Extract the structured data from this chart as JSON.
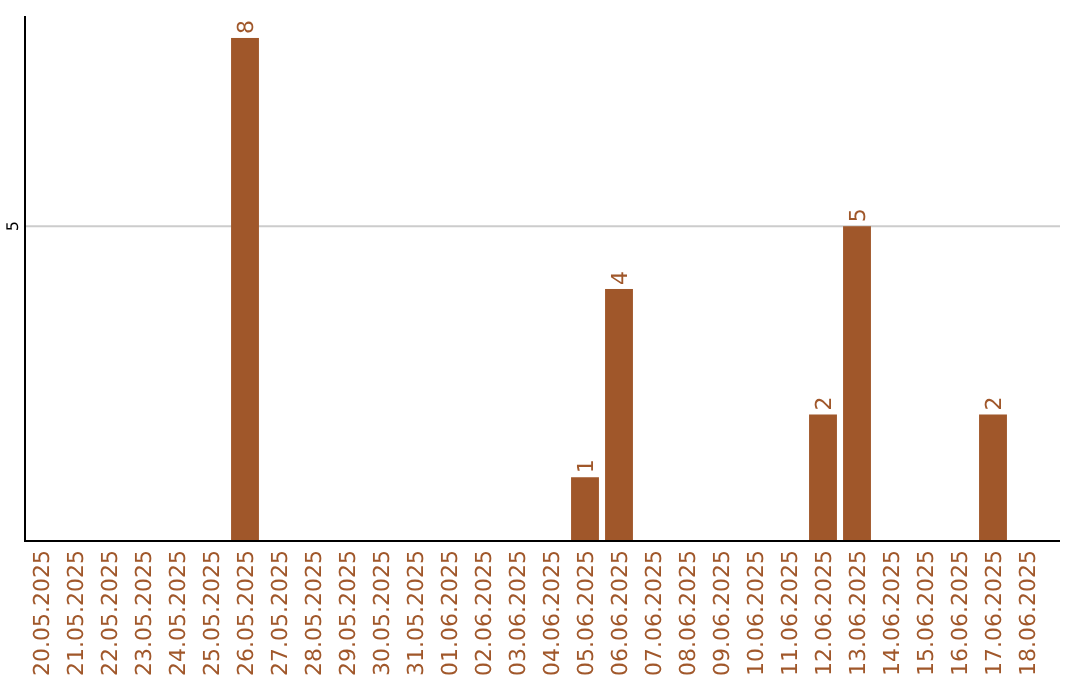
{
  "chart_data": {
    "type": "bar",
    "categories": [
      "20.05.2025",
      "21.05.2025",
      "22.05.2025",
      "23.05.2025",
      "24.05.2025",
      "25.05.2025",
      "26.05.2025",
      "27.05.2025",
      "28.05.2025",
      "29.05.2025",
      "30.05.2025",
      "31.05.2025",
      "01.06.2025",
      "02.06.2025",
      "03.06.2025",
      "04.06.2025",
      "05.06.2025",
      "06.06.2025",
      "07.06.2025",
      "08.06.2025",
      "09.06.2025",
      "10.06.2025",
      "11.06.2025",
      "12.06.2025",
      "13.06.2025",
      "14.06.2025",
      "15.06.2025",
      "16.06.2025",
      "17.06.2025",
      "18.06.2025"
    ],
    "values": [
      0,
      0,
      0,
      0,
      0,
      0,
      8,
      0,
      0,
      0,
      0,
      0,
      0,
      0,
      0,
      0,
      1,
      4,
      0,
      0,
      0,
      0,
      0,
      2,
      5,
      0,
      0,
      0,
      2,
      0
    ],
    "value_labels": [
      null,
      null,
      null,
      null,
      null,
      null,
      "8",
      null,
      null,
      null,
      null,
      null,
      null,
      null,
      null,
      null,
      "1",
      "4",
      null,
      null,
      null,
      null,
      null,
      "2",
      "5",
      null,
      null,
      null,
      "2",
      null
    ],
    "color": "#a0572a",
    "ylim": [
      0,
      8.35
    ],
    "yticks": [
      5
    ],
    "grid": "y"
  }
}
